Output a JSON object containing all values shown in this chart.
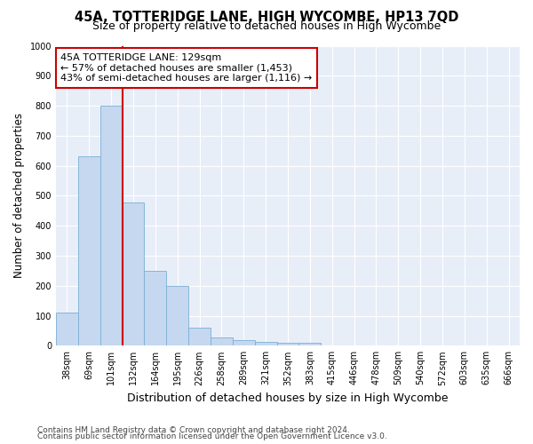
{
  "title": "45A, TOTTERIDGE LANE, HIGH WYCOMBE, HP13 7QD",
  "subtitle": "Size of property relative to detached houses in High Wycombe",
  "xlabel": "Distribution of detached houses by size in High Wycombe",
  "ylabel": "Number of detached properties",
  "categories": [
    "38sqm",
    "69sqm",
    "101sqm",
    "132sqm",
    "164sqm",
    "195sqm",
    "226sqm",
    "258sqm",
    "289sqm",
    "321sqm",
    "352sqm",
    "383sqm",
    "415sqm",
    "446sqm",
    "478sqm",
    "509sqm",
    "540sqm",
    "572sqm",
    "603sqm",
    "635sqm",
    "666sqm"
  ],
  "values": [
    110,
    630,
    800,
    478,
    250,
    200,
    60,
    28,
    18,
    12,
    10,
    10,
    0,
    0,
    0,
    0,
    0,
    0,
    0,
    0,
    0
  ],
  "bar_color": "#c5d8f0",
  "bar_edgecolor": "#7bafd4",
  "vline_color": "#cc0000",
  "vline_x_index": 2.5,
  "annotation_text": "45A TOTTERIDGE LANE: 129sqm\n← 57% of detached houses are smaller (1,453)\n43% of semi-detached houses are larger (1,116) →",
  "annotation_box_facecolor": "#ffffff",
  "annotation_box_edgecolor": "#cc0000",
  "ylim": [
    0,
    1000
  ],
  "yticks": [
    0,
    100,
    200,
    300,
    400,
    500,
    600,
    700,
    800,
    900,
    1000
  ],
  "footer1": "Contains HM Land Registry data © Crown copyright and database right 2024.",
  "footer2": "Contains public sector information licensed under the Open Government Licence v3.0.",
  "bg_color": "#ffffff",
  "plot_bg_color": "#e8eef8",
  "grid_color": "#ffffff",
  "title_fontsize": 10.5,
  "subtitle_fontsize": 9,
  "tick_fontsize": 7,
  "ylabel_fontsize": 8.5,
  "xlabel_fontsize": 9,
  "annotation_fontsize": 8,
  "footer_fontsize": 6.5
}
